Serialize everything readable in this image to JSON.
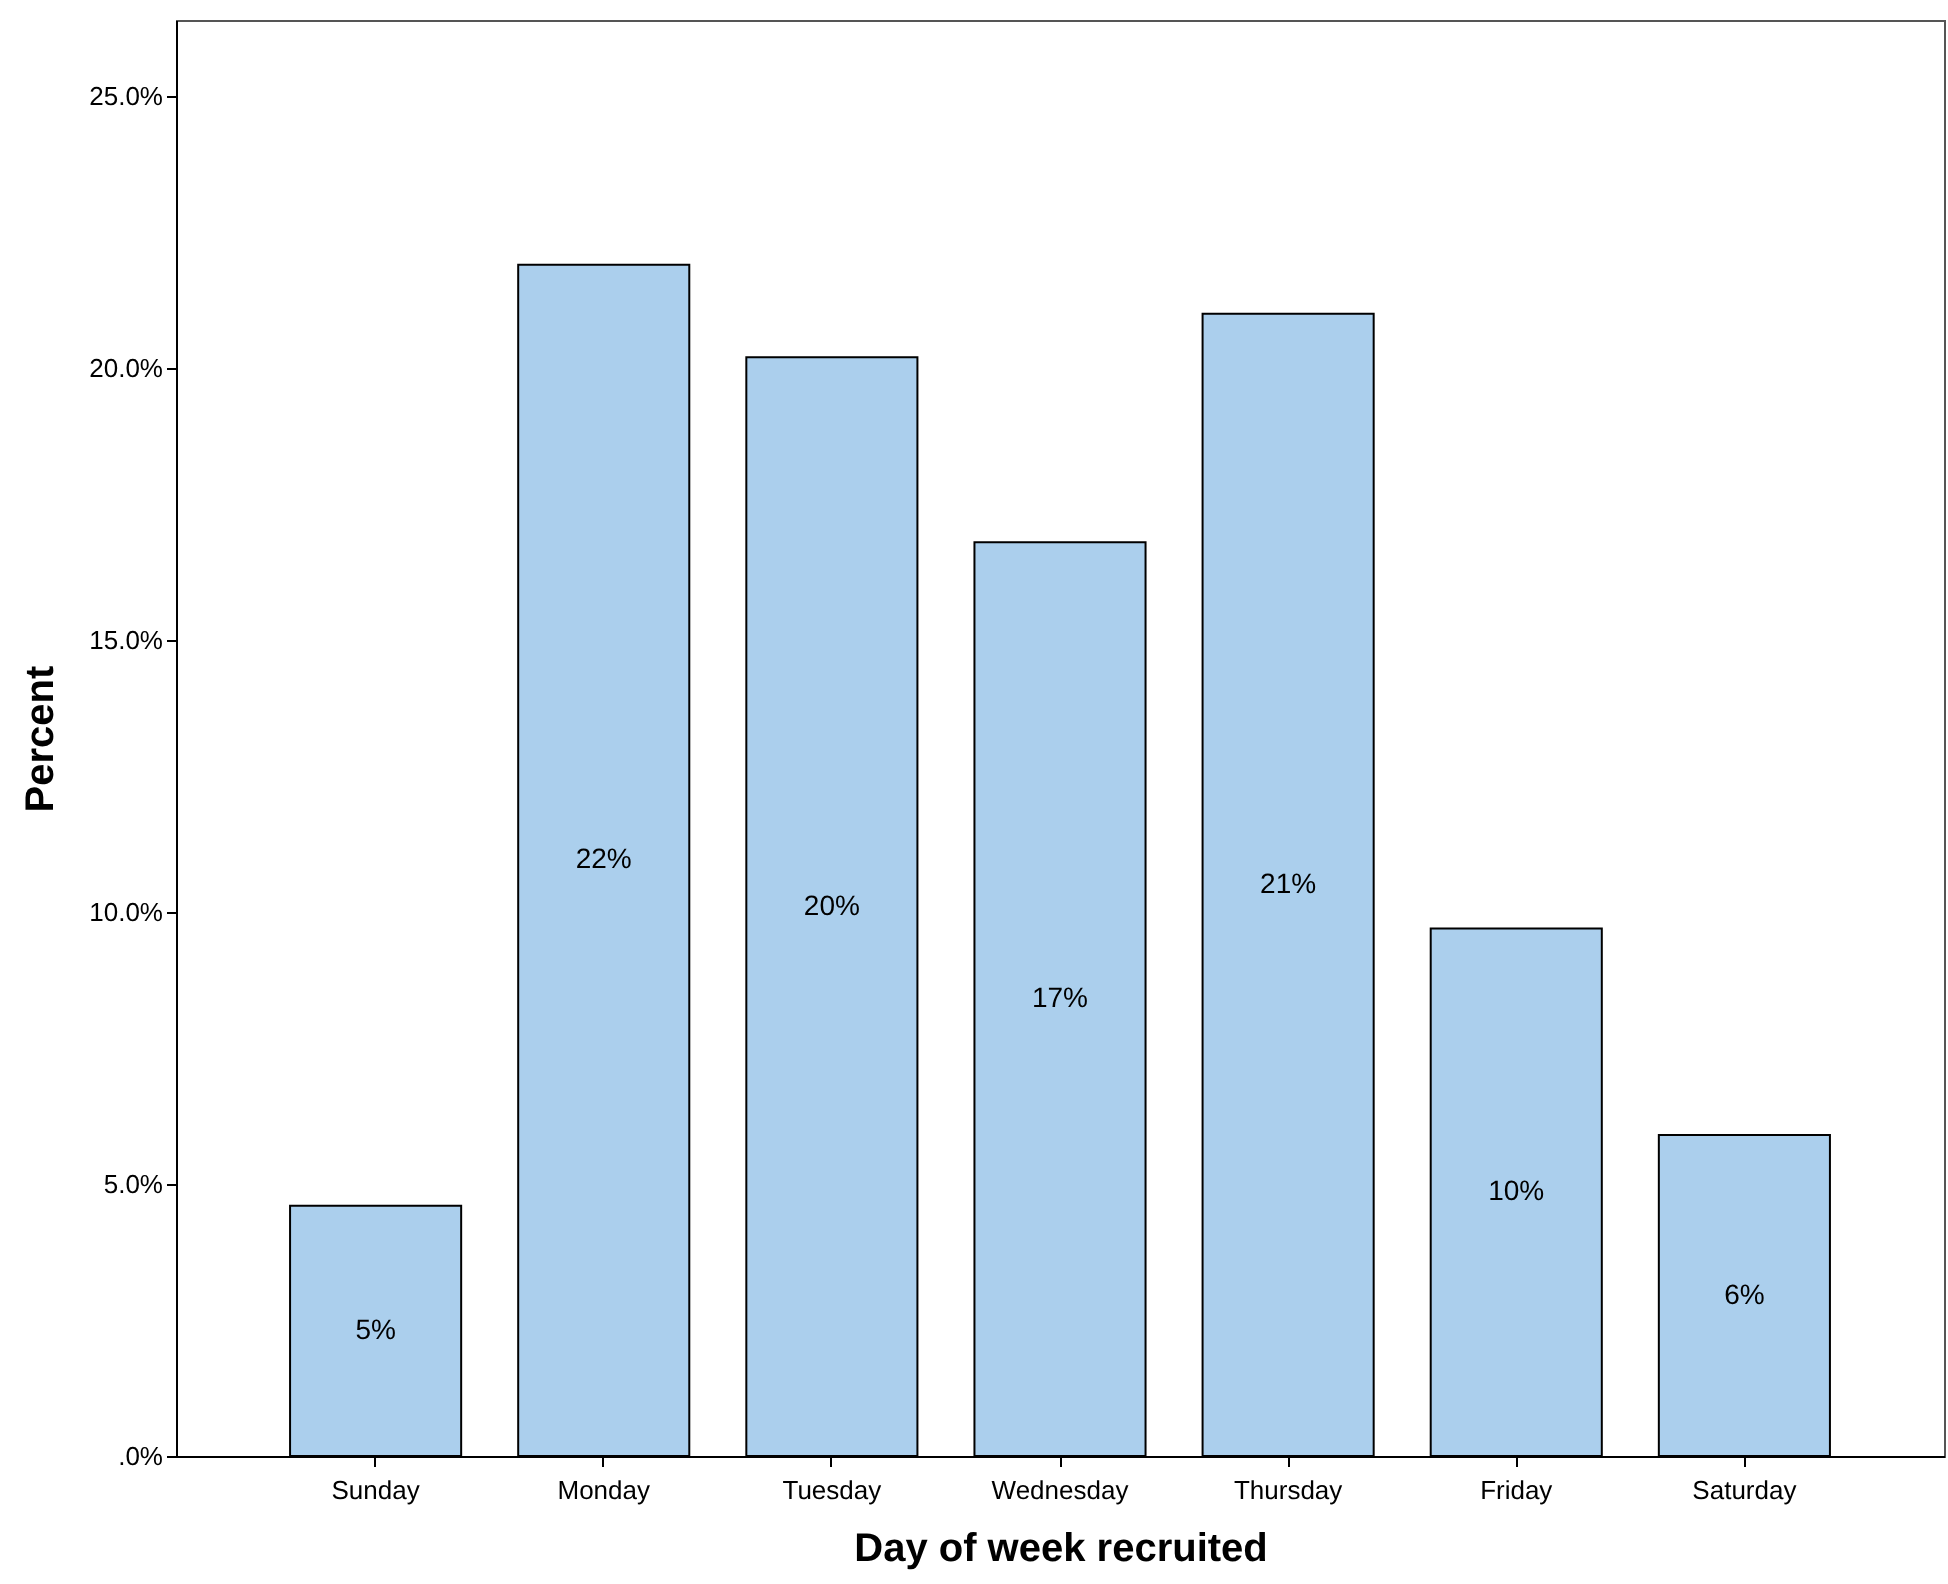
{
  "chart_data": {
    "type": "bar",
    "xlabel": "Day of week recruited",
    "ylabel": "Percent",
    "categories": [
      "Sunday",
      "Monday",
      "Tuesday",
      "Wednesday",
      "Thursday",
      "Friday",
      "Saturday"
    ],
    "values": [
      4.6,
      21.9,
      20.2,
      16.8,
      21.0,
      9.7,
      5.9
    ],
    "value_labels": [
      "5%",
      "22%",
      "20%",
      "17%",
      "21%",
      "10%",
      "6%"
    ],
    "color": "#abcfed",
    "ylim": [
      0,
      26.4
    ],
    "yticks": [
      {
        "value": 0,
        "label": ".0%"
      },
      {
        "value": 5,
        "label": "5.0%"
      },
      {
        "value": 10,
        "label": "10.0%"
      },
      {
        "value": 15,
        "label": "15.0%"
      },
      {
        "value": 20,
        "label": "20.0%"
      },
      {
        "value": 25,
        "label": "25.0%"
      }
    ],
    "relative": false
  }
}
